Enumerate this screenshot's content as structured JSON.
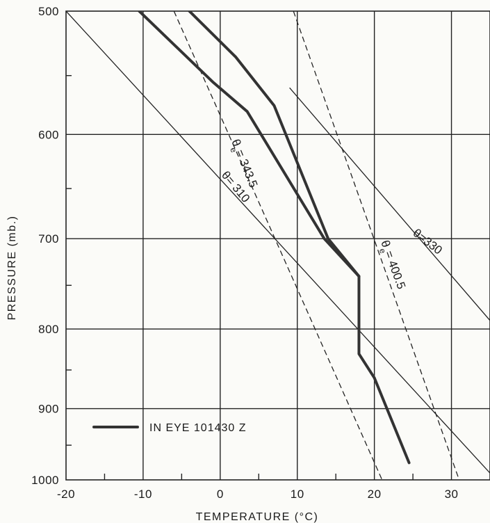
{
  "chart_data": {
    "type": "line",
    "title": "",
    "xlabel": "TEMPERATURE (°C)",
    "ylabel": "PRESSURE (mb.)",
    "xlim": [
      -20,
      35
    ],
    "ylim": [
      1000,
      500
    ],
    "y_scale": "log",
    "x_ticks": [
      "-20",
      "-10",
      "0",
      "10",
      "20",
      "30"
    ],
    "y_ticks": [
      "500",
      "600",
      "700",
      "800",
      "900",
      "1000"
    ],
    "grid": true,
    "legend": {
      "position": "bottom-left",
      "label": "IN EYE 101430 Z"
    },
    "series": [
      {
        "name": "IN EYE 101430 Z",
        "style": "thick-solid",
        "x": [
          24.5,
          20,
          18,
          18,
          14,
          7,
          2,
          -4
        ],
        "y": [
          975,
          860,
          830,
          740,
          700,
          575,
          535,
          500
        ]
      },
      {
        "name": "",
        "style": "thick-solid",
        "x": [
          18,
          13.5,
          3.5,
          -1,
          -10.5
        ],
        "y": [
          740,
          700,
          580,
          555,
          500
        ]
      }
    ],
    "reference_lines": [
      {
        "kind": "theta",
        "label": "θ = 310",
        "style": "solid",
        "x": [
          -20,
          35
        ],
        "y": [
          500,
          990
        ]
      },
      {
        "kind": "theta",
        "label": "θ=330",
        "style": "solid",
        "x": [
          9,
          35
        ],
        "y": [
          560,
          790
        ]
      },
      {
        "kind": "theta_e",
        "label": "θe = 343.5",
        "style": "dashed",
        "x": [
          -6,
          21
        ],
        "y": [
          500,
          1000
        ]
      },
      {
        "kind": "theta_e",
        "label": "θe = 400.5",
        "style": "dashed",
        "x": [
          9.5,
          31
        ],
        "y": [
          500,
          1000
        ]
      }
    ],
    "annotations": [
      {
        "text": "θ",
        "sub": "e",
        "rest": "= 343.5"
      },
      {
        "text": "θ",
        "sub": "",
        "rest": "= 310"
      },
      {
        "text": "θ",
        "sub": "e",
        "rest": "= 400.5"
      },
      {
        "text": "θ",
        "sub": "",
        "rest": "=330"
      }
    ]
  }
}
